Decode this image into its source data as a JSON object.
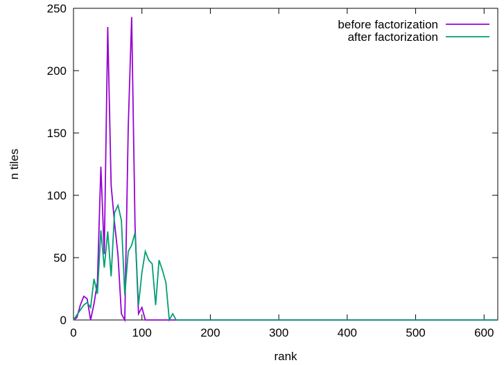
{
  "chart_data": {
    "type": "line",
    "title": "",
    "xlabel": "rank",
    "ylabel": "n tiles",
    "xlim": [
      0,
      620
    ],
    "ylim": [
      0,
      250
    ],
    "xticks": [
      0,
      100,
      200,
      300,
      400,
      500,
      600
    ],
    "yticks": [
      0,
      50,
      100,
      150,
      200,
      250
    ],
    "grid": false,
    "legend_position": "top-right",
    "series": [
      {
        "name": "before factorization",
        "color": "#9400d3",
        "x": [
          0,
          5,
          10,
          15,
          20,
          25,
          30,
          35,
          40,
          45,
          50,
          55,
          60,
          65,
          70,
          75,
          80,
          85,
          90,
          95,
          100,
          105,
          110,
          115,
          120,
          130,
          150,
          200,
          300,
          400,
          500,
          620
        ],
        "y": [
          0,
          2,
          12,
          19,
          17,
          0,
          13,
          30,
          123,
          53,
          235,
          108,
          78,
          52,
          5,
          0,
          155,
          243,
          75,
          5,
          10,
          0,
          0,
          0,
          0,
          0,
          0,
          0,
          0,
          0,
          0,
          0
        ]
      },
      {
        "name": "after factorization",
        "color": "#009e73",
        "x": [
          0,
          5,
          10,
          15,
          20,
          25,
          30,
          35,
          40,
          45,
          50,
          55,
          60,
          65,
          70,
          75,
          80,
          85,
          90,
          95,
          100,
          105,
          110,
          115,
          120,
          125,
          130,
          135,
          140,
          145,
          150,
          155,
          160,
          165,
          170,
          175,
          180,
          185,
          190,
          195,
          200,
          250,
          300,
          400,
          500,
          620
        ],
        "y": [
          0,
          4,
          8,
          12,
          14,
          10,
          33,
          21,
          72,
          42,
          71,
          35,
          86,
          92,
          80,
          20,
          55,
          60,
          70,
          12,
          38,
          55,
          48,
          45,
          12,
          48,
          40,
          30,
          0,
          5,
          0,
          0,
          0,
          0,
          0,
          0,
          0,
          0,
          0,
          0,
          0,
          0,
          0,
          0,
          0,
          0
        ]
      }
    ]
  }
}
